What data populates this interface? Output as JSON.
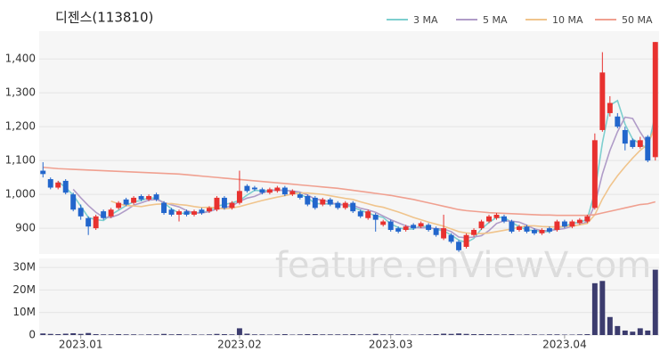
{
  "chart_data": [
    {
      "type": "candlestick",
      "title": "디젠스(113810)",
      "annotation": "feature.enViewV.com",
      "up_color": "#e8312f",
      "down_color": "#2266cc",
      "grid": true,
      "legend": "top-right",
      "xlim": [
        -0.5,
        81.5
      ],
      "ylim": [
        824,
        1482
      ],
      "yticks": [
        {
          "value": 900,
          "label": "900"
        },
        {
          "value": 1000,
          "label": "1,000"
        },
        {
          "value": 1100,
          "label": "1,100"
        },
        {
          "value": 1200,
          "label": "1,200"
        },
        {
          "value": 1300,
          "label": "1,300"
        },
        {
          "value": 1400,
          "label": "1,400"
        }
      ],
      "open": [
        1070,
        1045,
        1020,
        1040,
        1000,
        960,
        930,
        900,
        950,
        935,
        960,
        985,
        975,
        995,
        985,
        1000,
        975,
        955,
        940,
        950,
        940,
        955,
        950,
        955,
        990,
        960,
        975,
        1025,
        1020,
        1015,
        1005,
        1010,
        1020,
        1000,
        1000,
        995,
        990,
        970,
        985,
        975,
        960,
        975,
        950,
        930,
        940,
        910,
        920,
        900,
        895,
        910,
        905,
        910,
        900,
        870,
        880,
        860,
        845,
        880,
        900,
        920,
        930,
        935,
        920,
        895,
        905,
        895,
        885,
        900,
        895,
        920,
        905,
        915,
        920,
        960,
        1190,
        1240,
        1230,
        1190,
        1160,
        1140,
        1170,
        1110
      ],
      "high": [
        1095,
        1050,
        1040,
        1045,
        1005,
        970,
        935,
        940,
        955,
        960,
        980,
        990,
        995,
        1000,
        1000,
        1005,
        980,
        960,
        955,
        955,
        955,
        960,
        965,
        995,
        995,
        980,
        1070,
        1030,
        1025,
        1020,
        1020,
        1025,
        1025,
        1015,
        1005,
        1000,
        995,
        990,
        990,
        980,
        980,
        980,
        955,
        955,
        945,
        925,
        925,
        905,
        910,
        915,
        920,
        915,
        905,
        940,
        885,
        865,
        885,
        900,
        925,
        940,
        945,
        940,
        925,
        910,
        910,
        900,
        900,
        905,
        925,
        925,
        925,
        930,
        940,
        1180,
        1420,
        1290,
        1240,
        1200,
        1165,
        1170,
        1175,
        1450
      ],
      "low": [
        1050,
        1015,
        1015,
        1000,
        950,
        925,
        880,
        895,
        925,
        930,
        955,
        965,
        970,
        980,
        980,
        980,
        940,
        935,
        920,
        935,
        935,
        940,
        945,
        950,
        955,
        955,
        970,
        1005,
        1010,
        1000,
        1000,
        1005,
        995,
        995,
        985,
        965,
        955,
        965,
        965,
        955,
        955,
        945,
        930,
        925,
        890,
        905,
        890,
        885,
        890,
        895,
        900,
        890,
        875,
        865,
        855,
        830,
        840,
        875,
        895,
        915,
        925,
        915,
        885,
        890,
        885,
        880,
        880,
        885,
        890,
        900,
        900,
        910,
        915,
        955,
        1185,
        1230,
        1195,
        1130,
        1135,
        1135,
        1095,
        1100
      ],
      "close": [
        1060,
        1020,
        1035,
        1005,
        955,
        935,
        905,
        935,
        930,
        955,
        975,
        970,
        990,
        985,
        995,
        985,
        945,
        940,
        950,
        940,
        950,
        945,
        960,
        990,
        960,
        975,
        1010,
        1010,
        1015,
        1005,
        1015,
        1020,
        1000,
        1010,
        990,
        970,
        960,
        985,
        970,
        960,
        975,
        950,
        935,
        950,
        925,
        920,
        895,
        890,
        905,
        900,
        915,
        895,
        880,
        900,
        860,
        835,
        880,
        895,
        920,
        935,
        940,
        920,
        890,
        905,
        890,
        885,
        895,
        890,
        920,
        905,
        920,
        925,
        935,
        1160,
        1360,
        1270,
        1200,
        1150,
        1140,
        1160,
        1100,
        1450
      ],
      "series": [
        {
          "name": "3 MA",
          "color": "#7ecfcf",
          "values": [
            null,
            null,
            1038,
            1020,
            998,
            965,
            932,
            925,
            923,
            940,
            953,
            967,
            978,
            982,
            990,
            988,
            975,
            957,
            945,
            943,
            947,
            945,
            952,
            965,
            970,
            975,
            982,
            998,
            1012,
            1010,
            1012,
            1013,
            1012,
            1010,
            1000,
            990,
            973,
            972,
            972,
            972,
            968,
            962,
            953,
            945,
            937,
            932,
            913,
            902,
            897,
            898,
            907,
            903,
            897,
            892,
            880,
            865,
            858,
            870,
            898,
            917,
            932,
            932,
            917,
            905,
            895,
            893,
            890,
            890,
            902,
            905,
            915,
            917,
            927,
            1007,
            1152,
            1263,
            1277,
            1207,
            1163,
            1150,
            1133,
            1237
          ]
        },
        {
          "name": "5 MA",
          "color": "#b09cc8",
          "values": [
            null,
            null,
            null,
            null,
            1015,
            990,
            967,
            947,
            932,
            932,
            940,
            953,
            968,
            975,
            983,
            985,
            976,
            969,
            963,
            952,
            945,
            945,
            949,
            957,
            961,
            966,
            979,
            989,
            994,
            1004,
            1011,
            1013,
            1011,
            1010,
            1007,
            998,
            986,
            983,
            977,
            969,
            970,
            968,
            959,
            954,
            947,
            936,
            925,
            916,
            907,
            902,
            901,
            901,
            899,
            898,
            890,
            874,
            872,
            874,
            878,
            893,
            914,
            922,
            921,
            918,
            909,
            898,
            893,
            893,
            896,
            899,
            906,
            911,
            919,
            969,
            1060,
            1130,
            1185,
            1228,
            1224,
            1184,
            1150,
            1200
          ]
        },
        {
          "name": "10 MA",
          "color": "#f0c48c",
          "values": [
            null,
            null,
            null,
            null,
            null,
            null,
            null,
            null,
            null,
            980,
            972,
            967,
            966,
            964,
            968,
            971,
            972,
            973,
            970,
            968,
            964,
            961,
            962,
            960,
            957,
            960,
            964,
            970,
            976,
            982,
            987,
            992,
            996,
            1001,
            1004,
            1004,
            1002,
            1000,
            996,
            992,
            988,
            985,
            978,
            972,
            966,
            962,
            955,
            948,
            940,
            932,
            925,
            918,
            912,
            906,
            898,
            890,
            886,
            884,
            884,
            886,
            890,
            894,
            898,
            903,
            907,
            907,
            905,
            904,
            904,
            905,
            906,
            910,
            914,
            940,
            986,
            1024,
            1055,
            1082,
            1107,
            1130,
            1148,
            1200
          ]
        },
        {
          "name": "50 MA",
          "color": "#f0a090",
          "values": [
            1080,
            1078,
            1076,
            1075,
            1074,
            1073,
            1072,
            1071,
            1070,
            1069,
            1068,
            1067,
            1066,
            1065,
            1064,
            1063,
            1062,
            1061,
            1060,
            1058,
            1056,
            1054,
            1052,
            1050,
            1048,
            1046,
            1044,
            1042,
            1040,
            1038,
            1036,
            1034,
            1032,
            1030,
            1028,
            1026,
            1024,
            1022,
            1020,
            1018,
            1015,
            1012,
            1009,
            1006,
            1003,
            1000,
            997,
            993,
            989,
            985,
            980,
            975,
            970,
            965,
            960,
            955,
            952,
            950,
            948,
            946,
            945,
            944,
            943,
            942,
            941,
            940,
            939,
            939,
            938,
            938,
            938,
            938,
            938,
            940,
            945,
            950,
            955,
            960,
            965,
            970,
            972,
            978
          ]
        }
      ]
    },
    {
      "type": "bar",
      "color": "#3c3c6e",
      "grid": true,
      "xlim": [
        -0.5,
        81.5
      ],
      "xticks": [
        {
          "value": 5,
          "label": "2023.01"
        },
        {
          "value": 26,
          "label": "2023.02"
        },
        {
          "value": 46,
          "label": "2023.03"
        },
        {
          "value": 69,
          "label": "2023.04"
        }
      ],
      "ylim": [
        0,
        34000000
      ],
      "yticks": [
        0,
        {
          "value": 10000000,
          "label": "10M"
        },
        {
          "value": 20000000,
          "label": "20M"
        },
        {
          "value": 30000000,
          "label": "30M"
        }
      ],
      "values": [
        700000,
        500000,
        400000,
        600000,
        800000,
        500000,
        900000,
        400000,
        300000,
        300000,
        400000,
        300000,
        300000,
        200000,
        300000,
        300000,
        500000,
        300000,
        400000,
        200000,
        300000,
        200000,
        300000,
        500000,
        400000,
        300000,
        3000000,
        600000,
        300000,
        300000,
        200000,
        300000,
        400000,
        200000,
        300000,
        400000,
        400000,
        300000,
        300000,
        300000,
        300000,
        400000,
        300000,
        300000,
        500000,
        300000,
        300000,
        300000,
        200000,
        200000,
        300000,
        300000,
        400000,
        600000,
        500000,
        700000,
        500000,
        400000,
        400000,
        400000,
        300000,
        300000,
        400000,
        200000,
        300000,
        300000,
        200000,
        300000,
        300000,
        200000,
        200000,
        300000,
        400000,
        23000000,
        24000000,
        8000000,
        4000000,
        2000000,
        1500000,
        3000000,
        2000000,
        29000000
      ]
    }
  ]
}
